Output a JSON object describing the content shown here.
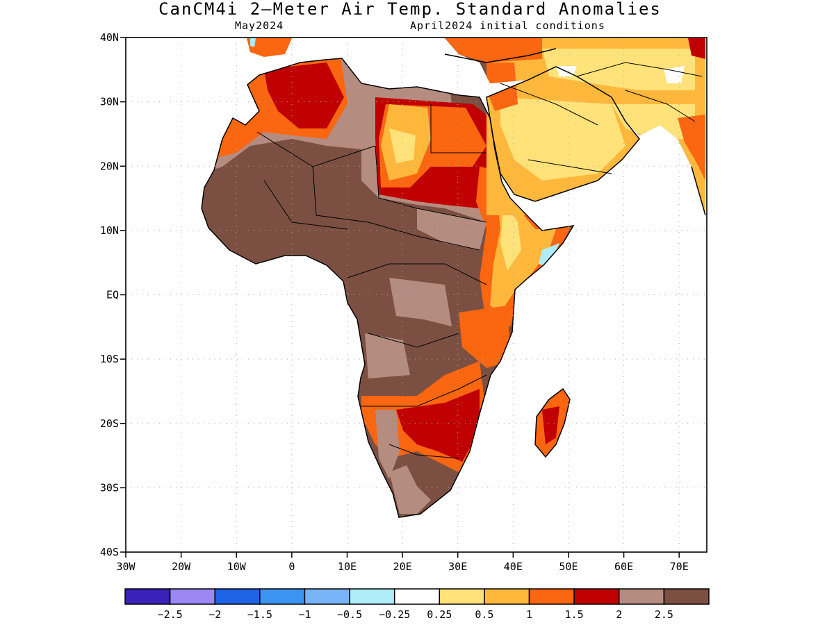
{
  "title": "CanCM4i 2—Meter Air Temp. Standard Anomalies",
  "subtitle_left": "May2024",
  "subtitle_right": "April2024 initial conditions",
  "lat_ticks": [
    {
      "label": "40N",
      "value": 40
    },
    {
      "label": "30N",
      "value": 30
    },
    {
      "label": "20N",
      "value": 20
    },
    {
      "label": "10N",
      "value": 10
    },
    {
      "label": "EQ",
      "value": 0
    },
    {
      "label": "10S",
      "value": -10
    },
    {
      "label": "20S",
      "value": -20
    },
    {
      "label": "30S",
      "value": -30
    },
    {
      "label": "40S",
      "value": -40
    }
  ],
  "lon_ticks": [
    {
      "label": "30W",
      "value": -30
    },
    {
      "label": "20W",
      "value": -20
    },
    {
      "label": "10W",
      "value": -10
    },
    {
      "label": "0",
      "value": 0
    },
    {
      "label": "10E",
      "value": 10
    },
    {
      "label": "20E",
      "value": 20
    },
    {
      "label": "30E",
      "value": 30
    },
    {
      "label": "40E",
      "value": 40
    },
    {
      "label": "50E",
      "value": 50
    },
    {
      "label": "60E",
      "value": 60
    },
    {
      "label": "70E",
      "value": 70
    }
  ],
  "colorbar": {
    "colors": [
      "#3a22b8",
      "#9c87f4",
      "#1e62e6",
      "#3c94f2",
      "#78b4f7",
      "#aeedf8",
      "#ffffff",
      "#ffe27a",
      "#ffb83c",
      "#fb6610",
      "#c00000",
      "#b58c80",
      "#7b5042"
    ],
    "labels": [
      "−2.5",
      "−2",
      "−1.5",
      "−1",
      "−0.5",
      "−0.25",
      "0.25",
      "0.5",
      "1",
      "1.5",
      "2",
      "2.5"
    ]
  },
  "colors": {
    "land_base": "#7b5042",
    "light_brown": "#b58c80",
    "dark_red": "#c00000",
    "orange": "#fb6610",
    "light_orange": "#ffb83c",
    "yellow": "#ffe27a",
    "cyan": "#aeedf8"
  }
}
